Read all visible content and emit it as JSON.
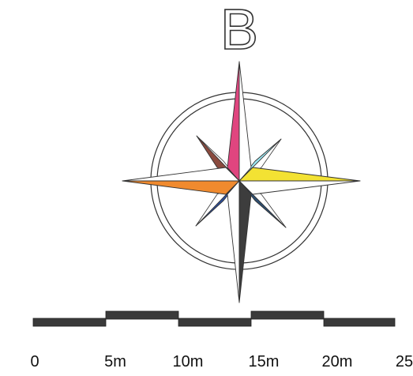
{
  "north_label": "B",
  "scale_bar": {
    "labels": [
      "0",
      "5m",
      "10m",
      "15m",
      "20m",
      "25"
    ],
    "segment_color": "#3a3a3a"
  },
  "compass": {
    "ring_color": "#333333",
    "points": [
      {
        "name": "north",
        "left_color": "#e0457f",
        "right_color": "#ffffff"
      },
      {
        "name": "east",
        "left_color": "#f3e233",
        "right_color": "#ffffff"
      },
      {
        "name": "south",
        "left_color": "#ffffff",
        "right_color": "#3d3d3d"
      },
      {
        "name": "west",
        "left_color": "#ffffff",
        "right_color": "#f08a2e"
      },
      {
        "name": "northeast",
        "color": "#9de9f5"
      },
      {
        "name": "southeast",
        "color": "#2d4f73"
      },
      {
        "name": "southwest",
        "color": "#2d4f9e"
      },
      {
        "name": "northwest",
        "color": "#8a4a3e"
      }
    ]
  }
}
